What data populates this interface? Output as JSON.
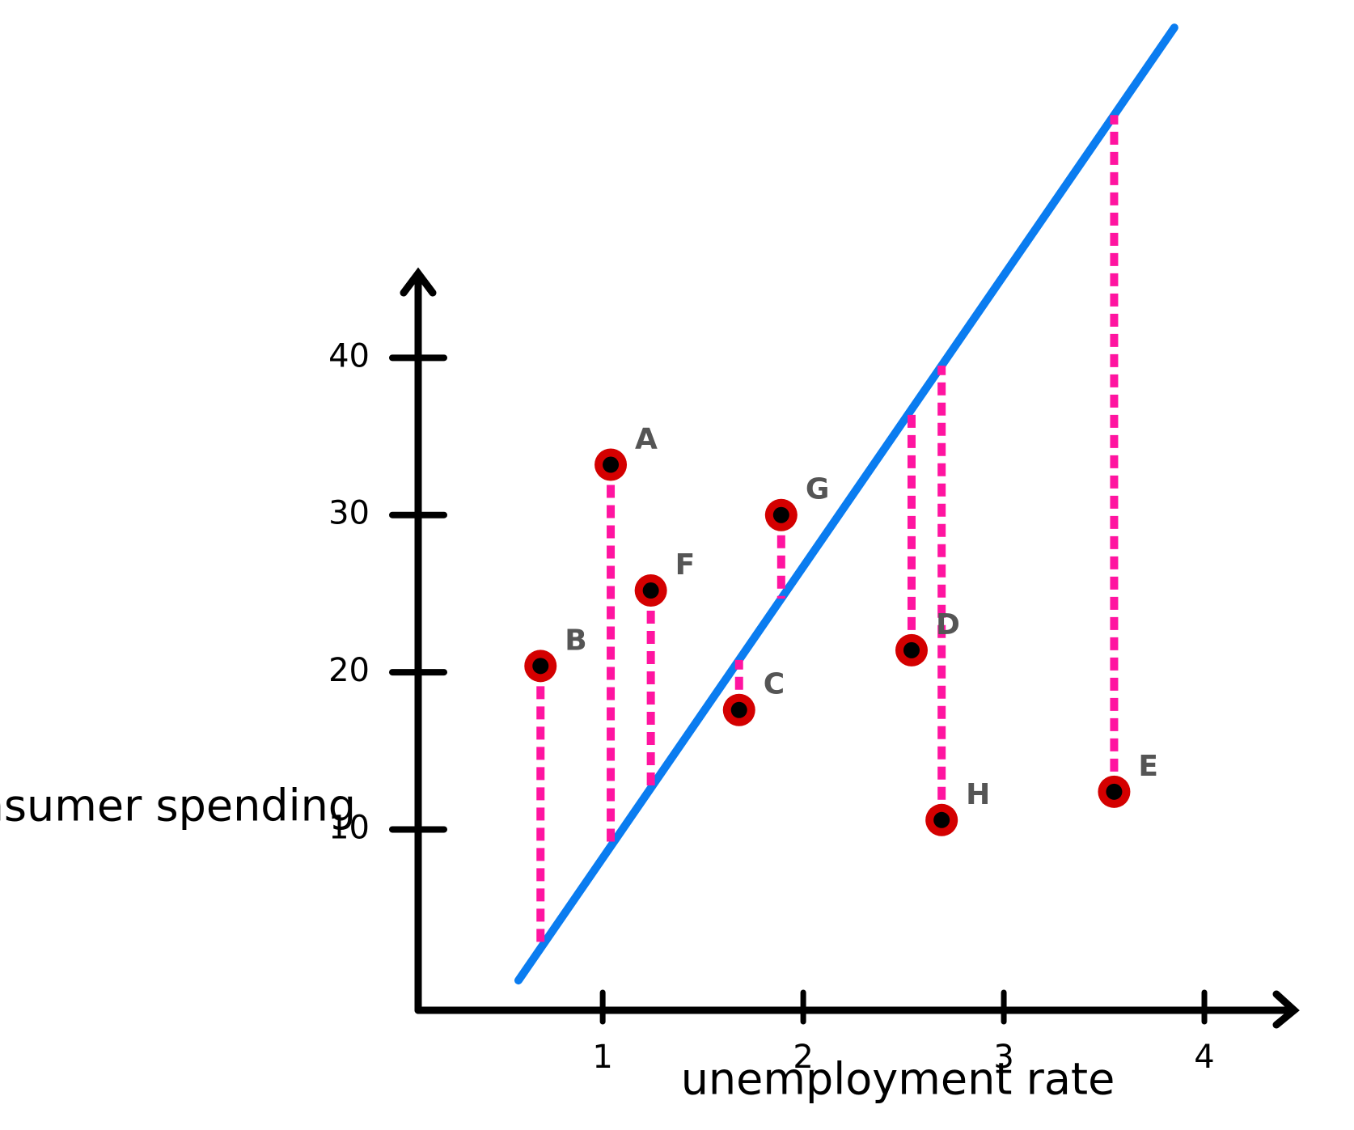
{
  "chart_data": {
    "type": "scatter",
    "x_label": "unemployment rate",
    "y_label": "Consumer spending",
    "xlim": [
      0.08,
      4.5
    ],
    "ylim": [
      -1.5,
      62.5
    ],
    "xticks": [
      1,
      2,
      3,
      4
    ],
    "yticks": [
      10,
      20,
      30,
      40
    ],
    "points": {
      "labels": [
        "B",
        "A",
        "F",
        "C",
        "G",
        "D",
        "H",
        "E"
      ],
      "x": [
        0.69,
        1.04,
        1.24,
        1.68,
        1.89,
        2.54,
        2.69,
        3.55
      ],
      "y": [
        20.4,
        33.2,
        25.2,
        17.6,
        30,
        21.4,
        10.6,
        12.4
      ],
      "color": "#d40000"
    },
    "fit_line": {
      "x": [
        0.58,
        3.85
      ],
      "y": [
        0.4,
        61
      ],
      "color": "#0a7cf0"
    },
    "residual_color": "#ff14a0"
  }
}
